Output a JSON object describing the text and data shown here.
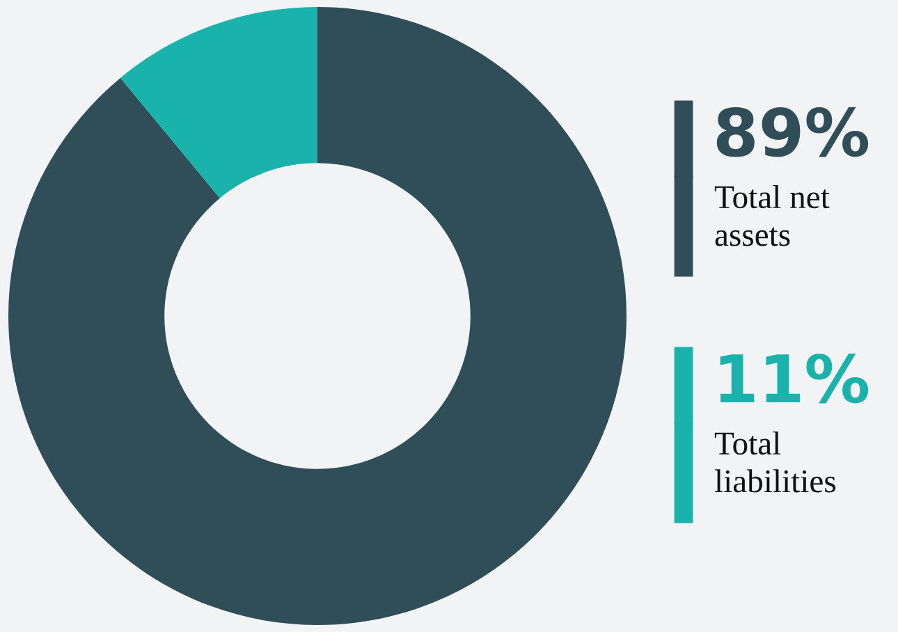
{
  "chart_data": {
    "type": "donut",
    "categories": [
      "Total net assets",
      "Total liabilities"
    ],
    "values": [
      89,
      11
    ],
    "value_labels": [
      "89%",
      "11%"
    ],
    "colors": [
      "#2f4e58",
      "#1ab3ab"
    ],
    "legend": "right"
  }
}
